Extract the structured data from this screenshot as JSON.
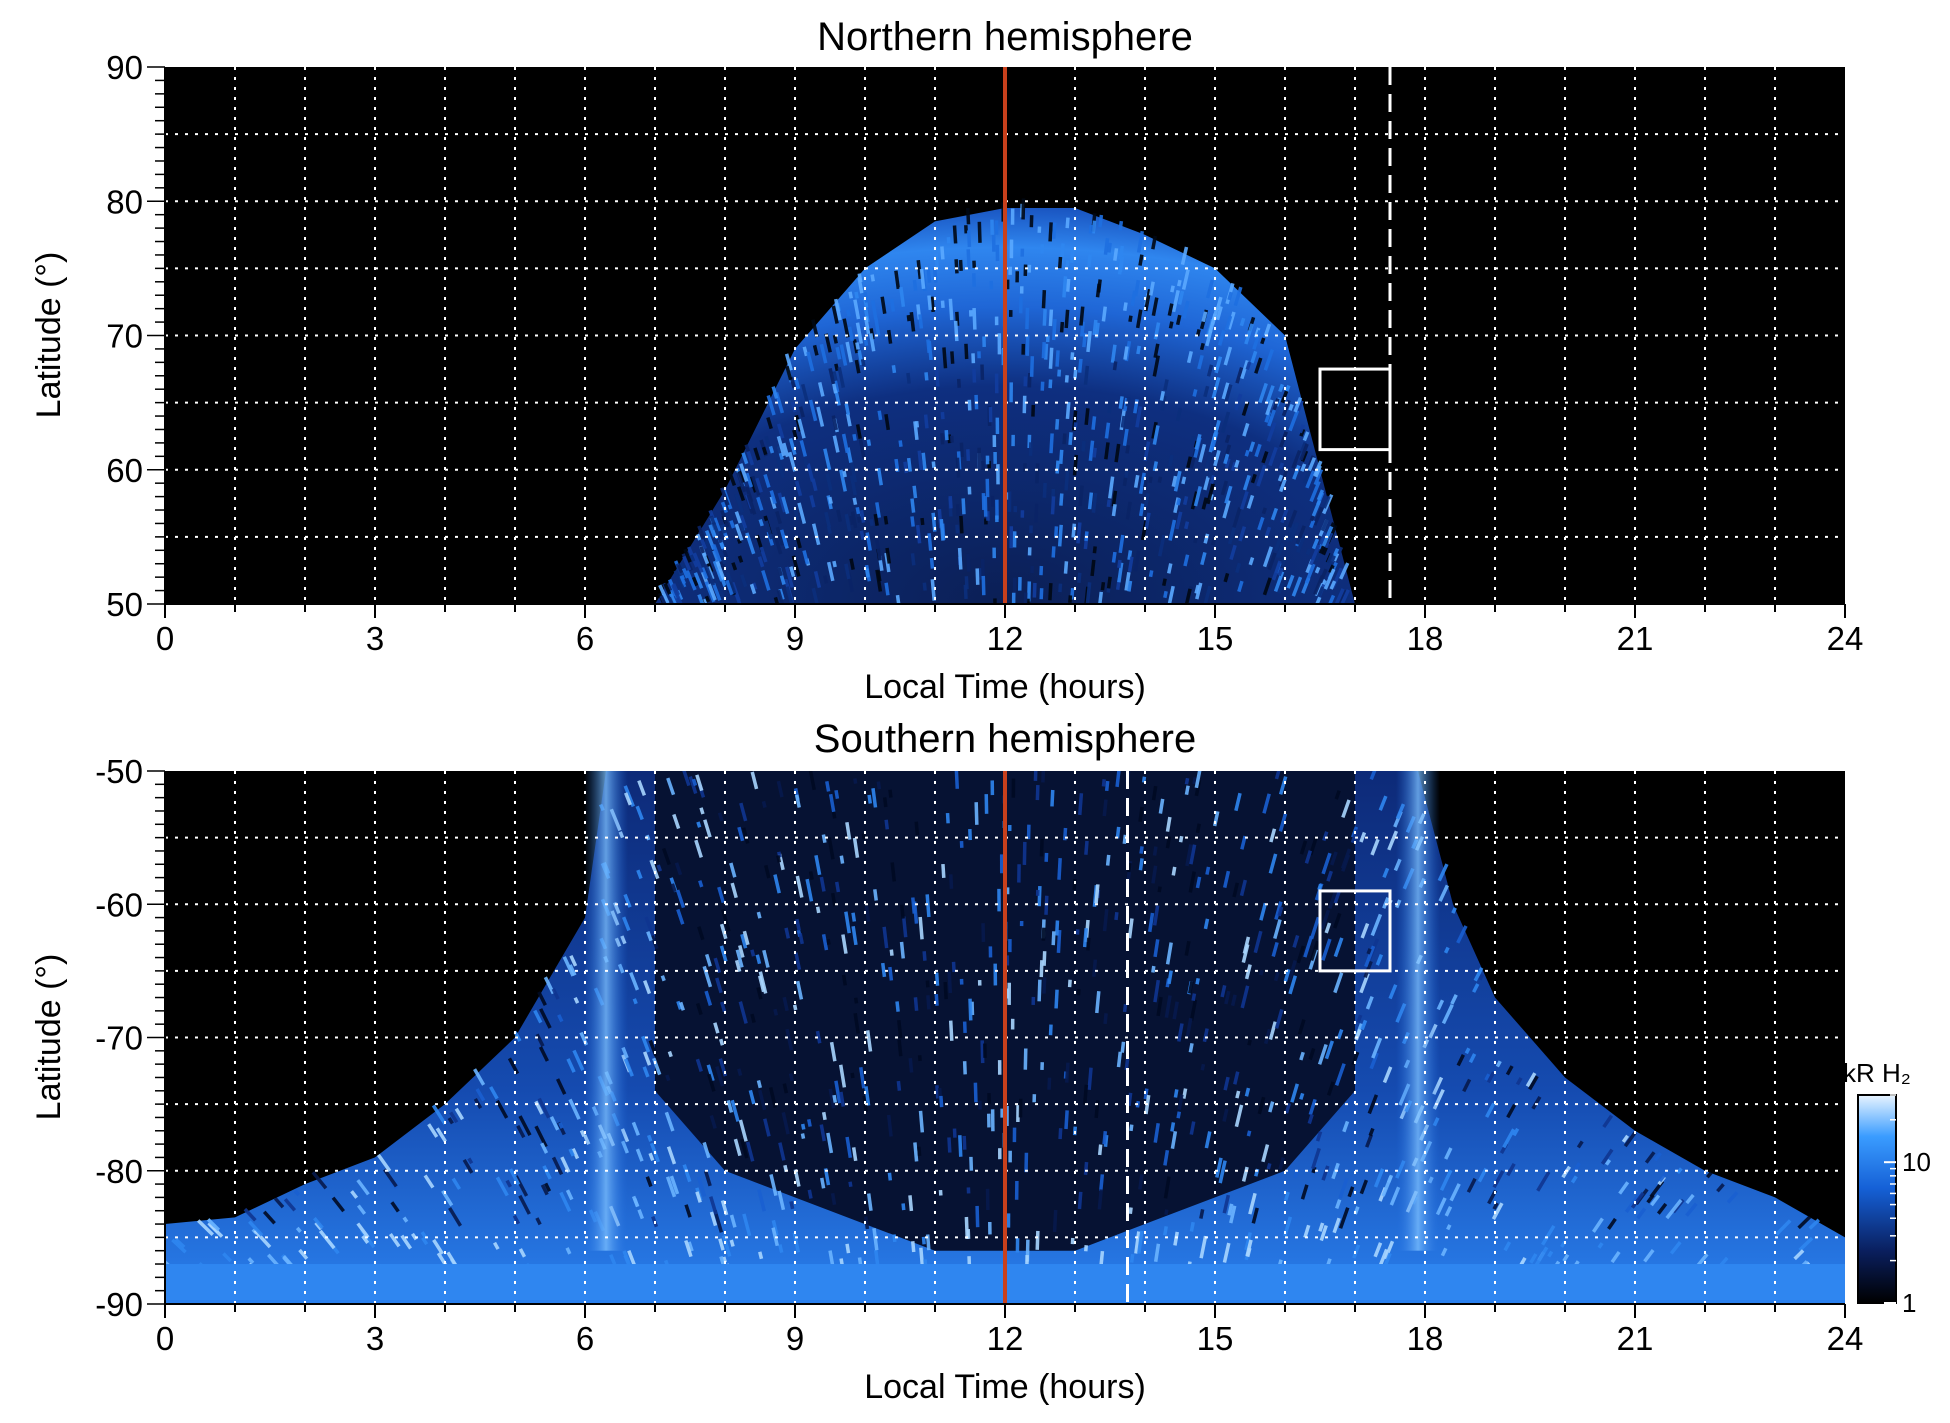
{
  "chart_data": [
    {
      "type": "heatmap",
      "title": "Northern hemisphere",
      "xlabel": "Local Time (hours)",
      "ylabel": "Latitude (°)",
      "xlim": [
        0,
        24
      ],
      "ylim": [
        50,
        90
      ],
      "xticks": [
        0,
        3,
        6,
        9,
        12,
        15,
        18,
        21,
        24
      ],
      "yticks": [
        50,
        60,
        70,
        80,
        90
      ],
      "grid": true,
      "emission_region": {
        "description": "auroral oval region",
        "lt_range": [
          7,
          17
        ],
        "outer_lat_edge": {
          "lt": [
            7,
            8,
            9,
            10,
            11,
            12,
            13,
            14,
            15,
            16,
            17
          ],
          "lat": [
            50,
            58.5,
            69,
            75,
            78.5,
            79.5,
            79.5,
            77.5,
            75,
            70,
            50
          ]
        },
        "bright_ring_lat": [
          68,
          80
        ],
        "dark_inner_lat": [
          50,
          68
        ]
      },
      "annotations": {
        "solid_vertical_line_lt": 12,
        "dashed_vertical_line_lt": 17.5,
        "box": {
          "lt": [
            16.5,
            17.5
          ],
          "lat": [
            61.5,
            67.5
          ]
        }
      }
    },
    {
      "type": "heatmap",
      "title": "Southern hemisphere",
      "xlabel": "Local Time (hours)",
      "ylabel": "Latitude (°)",
      "xlim": [
        0,
        24
      ],
      "ylim": [
        -90,
        -50
      ],
      "xticks": [
        0,
        3,
        6,
        9,
        12,
        15,
        18,
        21,
        24
      ],
      "yticks": [
        -90,
        -80,
        -70,
        -60,
        -50
      ],
      "grid": true,
      "emission_region": {
        "description": "southern auroral region",
        "lt_range": [
          0,
          24
        ],
        "bright_arc_lt": [
          6.3,
          17.9
        ],
        "dark_inner_lt": [
          7,
          17
        ]
      },
      "annotations": {
        "solid_vertical_line_lt": 12,
        "dashed_vertical_line_lt": 13.75,
        "box": {
          "lt": [
            16.5,
            17.5
          ],
          "lat": [
            -65,
            -59
          ]
        }
      },
      "colorbar": {
        "label": "kR H₂",
        "scale": "log",
        "range": [
          1,
          30
        ],
        "ticks": [
          1,
          10
        ]
      }
    }
  ],
  "colors": {
    "background": "#000000",
    "emission_dark": "#0a2a7a",
    "emission_mid": "#1e6fe0",
    "emission_bright": "#8fc8ff",
    "line_noon": "#c8401c",
    "grid": "#ffffff"
  }
}
